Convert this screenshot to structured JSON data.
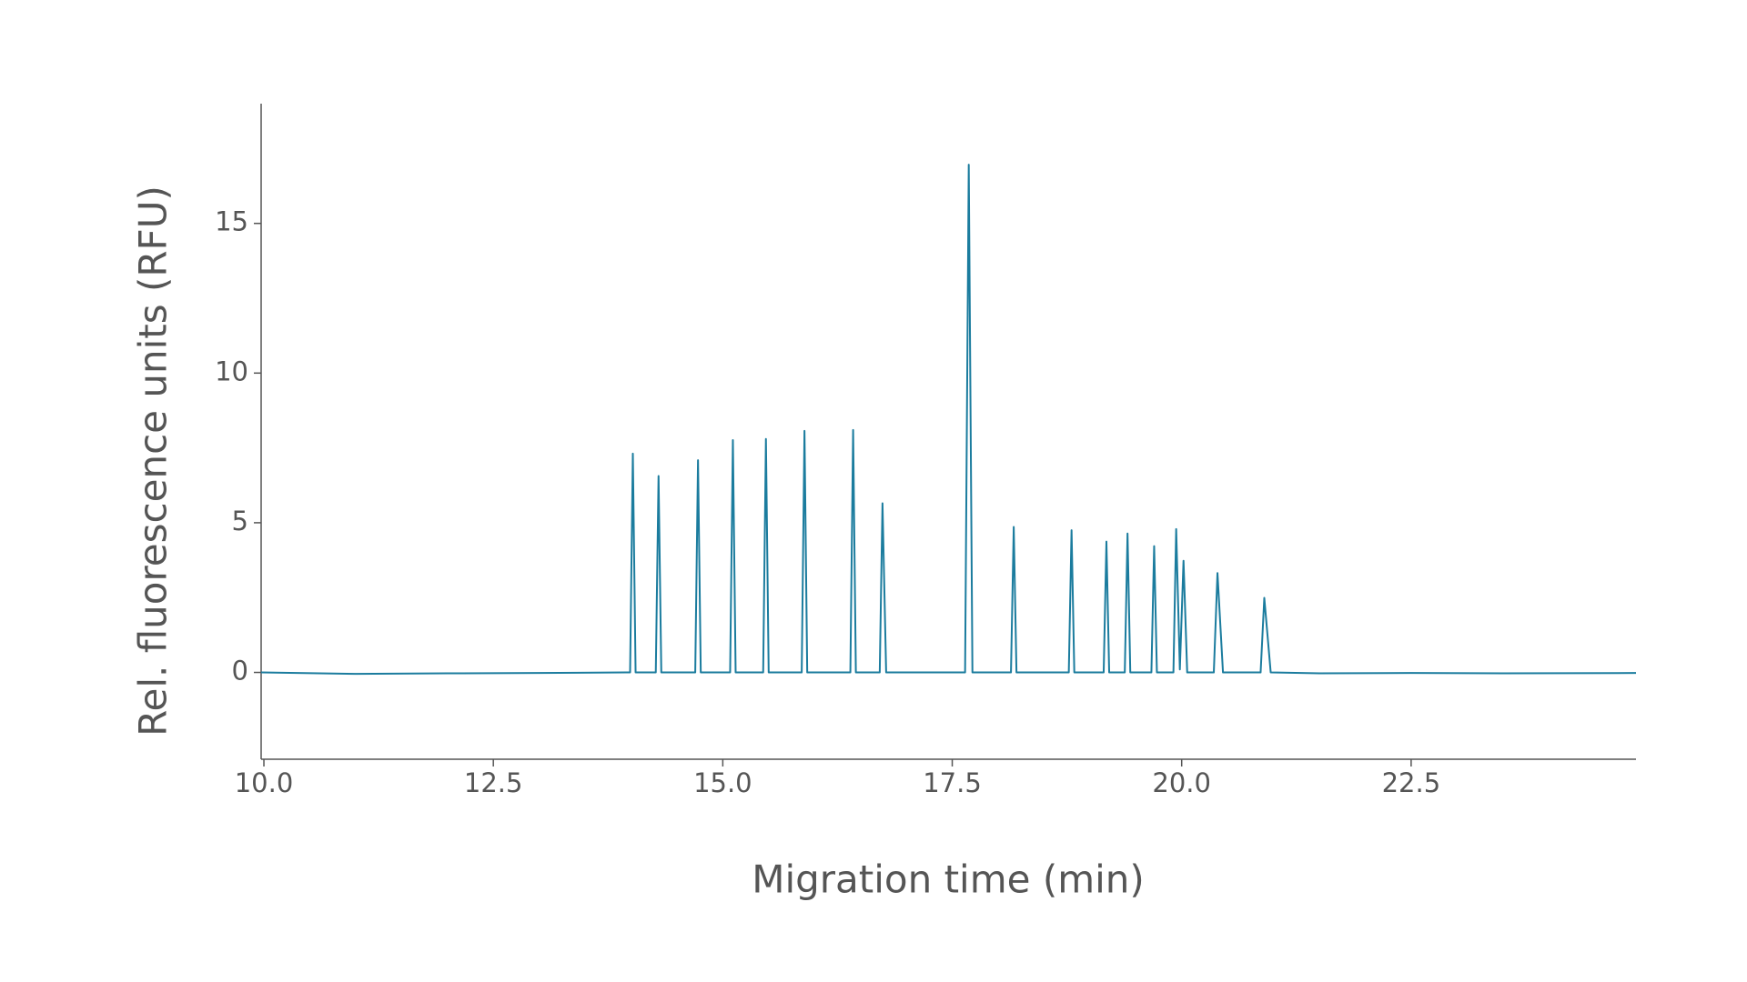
{
  "chart_data": {
    "type": "line",
    "xlabel": "Migration time (min)",
    "ylabel": "Rel. fluorescence units (RFU)",
    "x": [
      9.97,
      11.0,
      12.0,
      13.0,
      13.95,
      13.99,
      14.02,
      14.05,
      14.27,
      14.3,
      14.33,
      14.7,
      14.73,
      14.76,
      15.08,
      15.11,
      15.14,
      15.44,
      15.47,
      15.5,
      15.86,
      15.89,
      15.92,
      16.39,
      16.42,
      16.45,
      16.71,
      16.74,
      16.78,
      17.64,
      17.68,
      17.72,
      18.14,
      18.17,
      18.2,
      18.77,
      18.8,
      18.83,
      19.15,
      19.18,
      19.21,
      19.38,
      19.41,
      19.44,
      19.67,
      19.7,
      19.73,
      19.91,
      19.94,
      19.98,
      20.02,
      20.06,
      20.35,
      20.39,
      20.45,
      20.86,
      20.9,
      20.97,
      21.5,
      22.5,
      23.5,
      24.95
    ],
    "series": [
      {
        "color": "#1b7c9e",
        "values": [
          0,
          -0.05,
          -0.03,
          -0.02,
          0,
          0,
          7.31,
          0,
          0,
          6.56,
          0,
          0,
          7.09,
          0,
          0,
          7.76,
          0,
          0,
          7.8,
          0,
          0,
          8.07,
          0,
          0,
          8.1,
          0,
          0,
          5.65,
          0,
          0,
          16.96,
          0,
          0,
          4.86,
          0,
          0,
          4.75,
          0,
          0,
          4.37,
          0,
          0,
          4.64,
          0,
          0,
          4.22,
          0,
          0,
          4.79,
          0.1,
          3.73,
          0,
          0,
          3.32,
          0,
          0,
          2.49,
          0,
          -0.03,
          -0.02,
          -0.03,
          -0.02
        ]
      }
    ],
    "xlim": [
      9.97,
      24.95
    ],
    "ylim": [
      -2.9,
      19
    ],
    "xticks": [
      {
        "value": 10,
        "label": "10.0"
      },
      12.5,
      {
        "value": 15,
        "label": "15.0"
      },
      17.5,
      {
        "value": 20,
        "label": "20.0"
      },
      22.5
    ],
    "yticks": [
      0,
      5,
      10,
      15
    ]
  }
}
